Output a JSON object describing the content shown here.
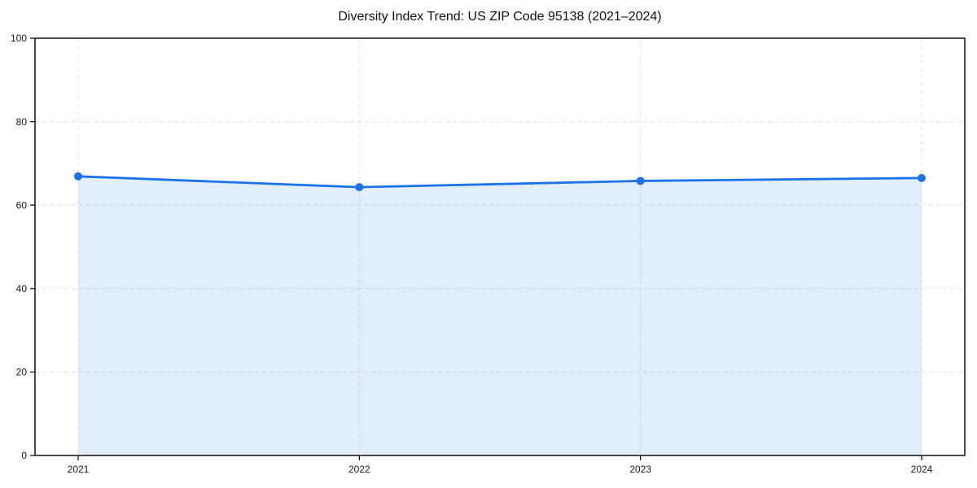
{
  "page": {
    "background": "#ffffff"
  },
  "chart_data": {
    "type": "area",
    "title": "Diversity Index Trend: US ZIP Code 95138 (2021–2024)",
    "categories": [
      "2021",
      "2022",
      "2023",
      "2024"
    ],
    "values": [
      66.9,
      64.3,
      65.8,
      66.5
    ],
    "xlabel": "",
    "ylabel": "",
    "ylim": [
      0,
      100
    ],
    "yticks": [
      0,
      20,
      40,
      60,
      80,
      100
    ],
    "grid": true,
    "grid_style": "dashed",
    "legend_position": "none",
    "line_color": "#1a73e8",
    "marker": "circle",
    "marker_radius": 5,
    "fill_color": "#1a73e8",
    "fill_opacity": 0.12,
    "spine_color": "#000000",
    "text_color": "#1a1a1a"
  }
}
